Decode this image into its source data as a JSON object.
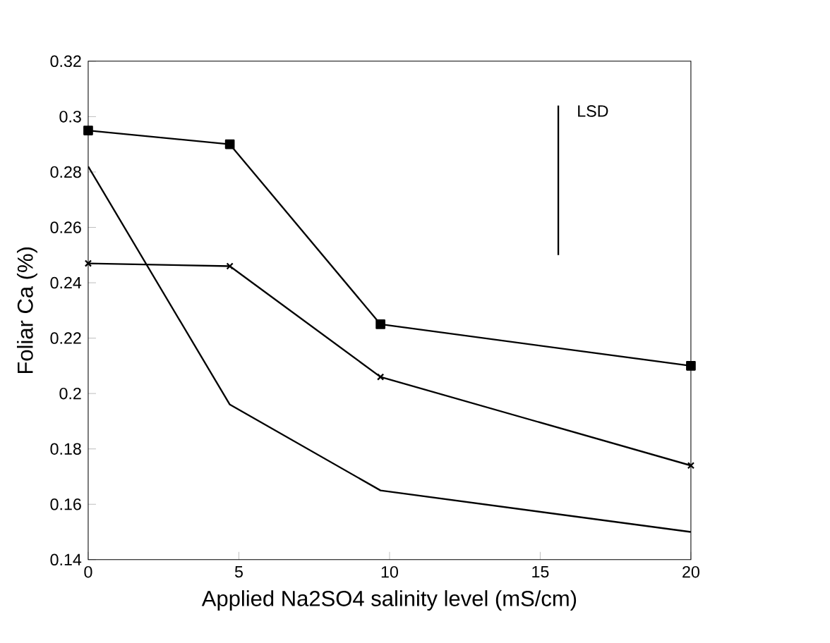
{
  "chart_data": {
    "type": "line",
    "xlabel": "Applied Na2SO4 salinity level (mS/cm)",
    "ylabel": "Foliar Ca (%)",
    "xlim": [
      0,
      20
    ],
    "xticks": [
      0,
      5,
      10,
      15,
      20
    ],
    "ylim": [
      0.14,
      0.32
    ],
    "yticks": [
      0.14,
      0.16,
      0.18,
      0.2,
      0.22,
      0.24,
      0.26,
      0.28,
      0.3,
      0.32
    ],
    "x": [
      0,
      4.7,
      9.7,
      20
    ],
    "series": [
      {
        "color": "#000000",
        "marker": "square",
        "values": [
          0.295,
          0.29,
          0.225,
          0.21
        ]
      },
      {
        "color": "#000000",
        "marker": "cross",
        "values": [
          0.247,
          0.246,
          0.206,
          0.174
        ]
      },
      {
        "color": "#000000",
        "marker": "none",
        "values": [
          0.282,
          0.196,
          0.165,
          0.15
        ]
      },
      {
        "color": "#000000",
        "marker": "none",
        "x": [
          15.6,
          15.6
        ],
        "values": [
          0.25,
          0.304
        ]
      }
    ],
    "annotations": [
      "LSD"
    ],
    "grid": false
  }
}
